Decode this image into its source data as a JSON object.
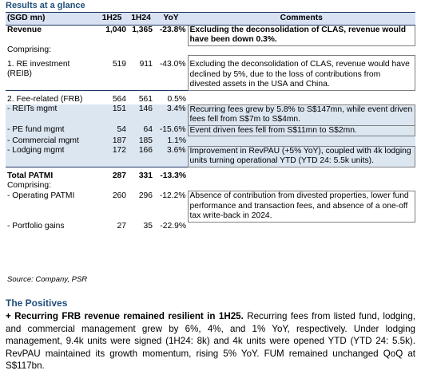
{
  "header": {
    "title": "Results at a glance"
  },
  "table": {
    "columns": [
      "(SGD mn)",
      "1H25",
      "1H24",
      "YoY",
      "Comments"
    ],
    "rows": [
      {
        "label": "Revenue",
        "h25": "1,040",
        "h24": "1,365",
        "yoy": "-23.8%",
        "comment": "Excluding the deconsolidation of CLAS, revenue would have been down 0.3%."
      },
      {
        "label": "Comprising:"
      },
      {
        "label": "1. RE investment (REIB)",
        "h25": "519",
        "h24": "911",
        "yoy": "-43.0%",
        "comment": "Excluding the deconsolidation of CLAS, revenue would have declined by 5%, due to the loss of contributions from divested assets in the USA and China."
      },
      {
        "label": "2. Fee-related (FRB)",
        "h25": "564",
        "h24": "561",
        "yoy": "0.5%"
      },
      {
        "label": "- REITs mgmt",
        "h25": "151",
        "h24": "146",
        "yoy": "3.4%",
        "comment": "Recurring fees grew by 5.8% to S$147mn, while event driven fees fell from S$7m to S$4mn."
      },
      {
        "label": "- PE fund mgmt",
        "h25": "54",
        "h24": "64",
        "yoy": "-15.6%",
        "comment": "Event driven fees fell from S$11mn to S$2mn."
      },
      {
        "label": "- Commercial mgmt",
        "h25": "187",
        "h24": "185",
        "yoy": "1.1%"
      },
      {
        "label": "- Lodging mgmt",
        "h25": "172",
        "h24": "166",
        "yoy": "3.6%",
        "comment": "Improvement in RevPAU (+5% YoY), coupled with 4k lodging units turning operational YTD (YTD 24: 5.5k units)."
      },
      {
        "label": "Total PATMI",
        "h25": "287",
        "h24": "331",
        "yoy": "-13.3%"
      },
      {
        "label": "Comprising:"
      },
      {
        "label": "- Operating PATMI",
        "h25": "260",
        "h24": "296",
        "yoy": "-12.2%",
        "comment": "Absence of contribution from divested properties, lower fund performance and transaction fees, and absence of a one-off tax write-back in 2024."
      },
      {
        "label": "- Portfolio gains",
        "h25": "27",
        "h24": "35",
        "yoy": "-22.9%"
      }
    ],
    "source": "Source: Company, PSR"
  },
  "section": {
    "title": "The Positives",
    "lead": "+ Recurring FRB revenue remained resilient in 1H25.",
    "body": " Recurring fees from listed fund, lodging, and commercial management grew by 6%, 4%, and 1% YoY, respectively. Under lodging management, 9.4k units were signed (1H24: 8k) and 4k units were opened YTD (YTD 24: 5.5k). RevPAU maintained its growth momentum, rising 5% YoY. FUM remained unchanged QoQ at S$117bn."
  }
}
